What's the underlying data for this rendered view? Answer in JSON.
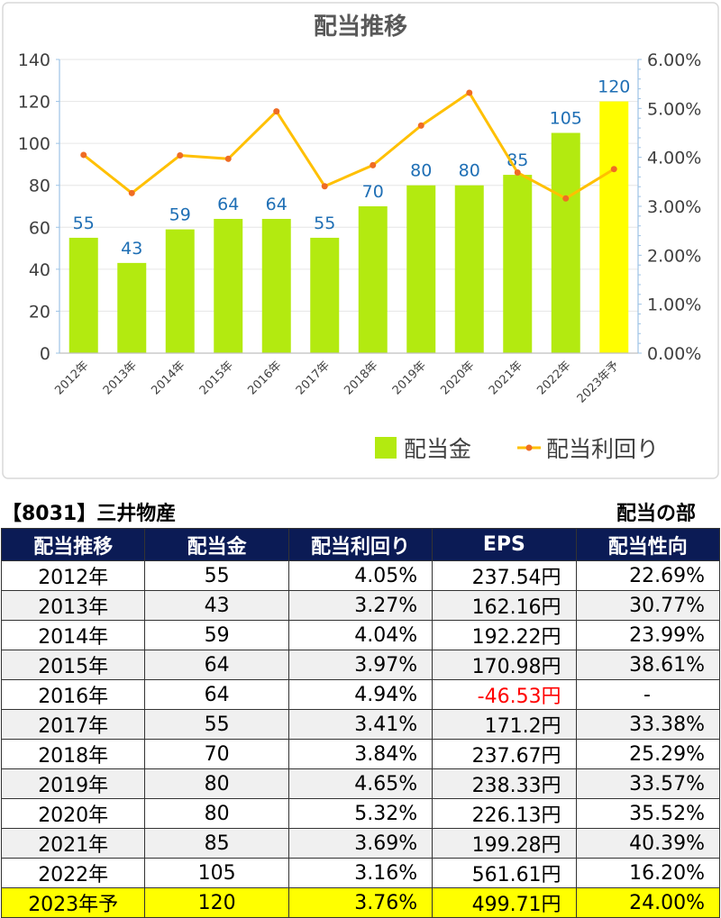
{
  "chart_data": {
    "type": "bar+line",
    "title": "配当推移",
    "categories": [
      "2012年",
      "2013年",
      "2014年",
      "2015年",
      "2016年",
      "2017年",
      "2018年",
      "2019年",
      "2020年",
      "2021年",
      "2022年",
      "2023年予"
    ],
    "series": [
      {
        "name": "配当金",
        "type": "bar",
        "axis": "left",
        "values": [
          55,
          43,
          59,
          64,
          64,
          55,
          70,
          80,
          80,
          85,
          105,
          120
        ],
        "labels": [
          "55",
          "43",
          "59",
          "64",
          "64",
          "55",
          "70",
          "80",
          "80",
          "85",
          "105",
          "120"
        ]
      },
      {
        "name": "配当利回り",
        "type": "line",
        "axis": "right",
        "values": [
          4.05,
          3.27,
          4.04,
          3.97,
          4.94,
          3.41,
          3.84,
          4.65,
          5.32,
          3.69,
          3.16,
          3.76
        ]
      }
    ],
    "ylim_left": [
      0,
      140
    ],
    "yticks_left": [
      "0",
      "20",
      "40",
      "60",
      "80",
      "100",
      "120",
      "140"
    ],
    "ylim_right": [
      0,
      6
    ],
    "yticks_right": [
      "0.00%",
      "1.00%",
      "2.00%",
      "3.00%",
      "4.00%",
      "5.00%",
      "6.00%"
    ],
    "highlight_index": 11,
    "colors": {
      "bar": "#b3ea10",
      "bar_highlight": "#ffff00",
      "line": "#ffc000",
      "marker": "#ef6c24",
      "label": "#1f6fb5",
      "axis": "#9dc3e6",
      "grid": "#e6e6e6"
    },
    "legend": "bottom-right"
  },
  "table": {
    "title": "【8031】三井物産",
    "subtitle": "配当の部",
    "headers": [
      "配当推移",
      "配当金",
      "配当利回り",
      "EPS",
      "配当性向"
    ],
    "rows": [
      [
        "2012年",
        "55",
        "4.05%",
        "237.54円",
        "22.69%"
      ],
      [
        "2013年",
        "43",
        "3.27%",
        "162.16円",
        "30.77%"
      ],
      [
        "2014年",
        "59",
        "4.04%",
        "192.22円",
        "23.99%"
      ],
      [
        "2015年",
        "64",
        "3.97%",
        "170.98円",
        "38.61%"
      ],
      [
        "2016年",
        "64",
        "4.94%",
        "-46.53円",
        "-"
      ],
      [
        "2017年",
        "55",
        "3.41%",
        "171.2円",
        "33.38%"
      ],
      [
        "2018年",
        "70",
        "3.84%",
        "237.67円",
        "25.29%"
      ],
      [
        "2019年",
        "80",
        "4.65%",
        "238.33円",
        "33.57%"
      ],
      [
        "2020年",
        "80",
        "5.32%",
        "226.13円",
        "35.52%"
      ],
      [
        "2021年",
        "85",
        "3.69%",
        "199.28円",
        "40.39%"
      ],
      [
        "2022年",
        "105",
        "3.16%",
        "561.61円",
        "16.20%"
      ],
      [
        "2023年予",
        "120",
        "3.76%",
        "499.71円",
        "24.00%"
      ]
    ]
  }
}
